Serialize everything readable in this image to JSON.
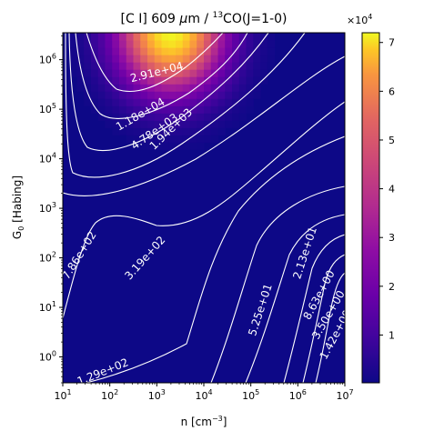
{
  "chart_data": {
    "type": "heatmap",
    "title": "[C I] 609 μm / ¹³CO(J=1-0)",
    "title_parts": {
      "pre": "[C I] 609 ",
      "mu": "μ",
      "mid": "m / ",
      "sup": "13",
      "post": "CO(J=1-0)"
    },
    "xlabel": "n [cm⁻³]",
    "xlabel_parts": {
      "pre": "n [cm",
      "sup": "−3",
      "post": "]"
    },
    "ylabel": "G₀ [Habing]",
    "ylabel_parts": {
      "pre": "G",
      "sub": "0",
      "post": " [Habing]"
    },
    "x_scale": "log",
    "y_scale": "log",
    "xlim": [
      10,
      10000000
    ],
    "ylim": [
      0.3,
      3500000
    ],
    "x_ticks": [
      {
        "value": 10,
        "base": "10",
        "exp": "1"
      },
      {
        "value": 100,
        "base": "10",
        "exp": "2"
      },
      {
        "value": 1000,
        "base": "10",
        "exp": "3"
      },
      {
        "value": 10000,
        "base": "10",
        "exp": "4"
      },
      {
        "value": 100000,
        "base": "10",
        "exp": "5"
      },
      {
        "value": 1000000,
        "base": "10",
        "exp": "6"
      },
      {
        "value": 10000000,
        "base": "10",
        "exp": "7"
      }
    ],
    "y_ticks": [
      {
        "value": 1,
        "base": "10",
        "exp": "0"
      },
      {
        "value": 10,
        "base": "10",
        "exp": "1"
      },
      {
        "value": 100,
        "base": "10",
        "exp": "2"
      },
      {
        "value": 1000,
        "base": "10",
        "exp": "3"
      },
      {
        "value": 10000,
        "base": "10",
        "exp": "4"
      },
      {
        "value": 100000,
        "base": "10",
        "exp": "5"
      },
      {
        "value": 1000000,
        "base": "10",
        "exp": "6"
      }
    ],
    "colormap": "plasma",
    "colorbar": {
      "range": [
        200,
        72000
      ],
      "multiplier_base": "×10",
      "multiplier_exp": "4",
      "ticks": [
        {
          "value": 10000,
          "label": "1"
        },
        {
          "value": 20000,
          "label": "2"
        },
        {
          "value": 30000,
          "label": "3"
        },
        {
          "value": 40000,
          "label": "4"
        },
        {
          "value": 50000,
          "label": "5"
        },
        {
          "value": 60000,
          "label": "6"
        },
        {
          "value": 70000,
          "label": "7"
        }
      ]
    },
    "peak": {
      "log_n": 3.3,
      "log_g0": 6.6,
      "value": 72000
    },
    "contour_labels": [
      {
        "text": "2.91e+04",
        "log_n": 3.0,
        "log_g0": 5.75,
        "angle": -14
      },
      {
        "text": "1.18e+04",
        "log_n": 2.65,
        "log_g0": 4.9,
        "angle": -30
      },
      {
        "text": "4.78e+03",
        "log_n": 2.95,
        "log_g0": 4.55,
        "angle": -35
      },
      {
        "text": "1.94e+03",
        "log_n": 3.3,
        "log_g0": 4.6,
        "angle": -44
      },
      {
        "text": "7.86e+02",
        "log_n": 1.35,
        "log_g0": 2.05,
        "angle": -58
      },
      {
        "text": "3.19e+02",
        "log_n": 2.75,
        "log_g0": 2.0,
        "angle": -48
      },
      {
        "text": "2.13e+01",
        "log_n": 6.15,
        "log_g0": 2.1,
        "angle": -72
      },
      {
        "text": "5.25e+01",
        "log_n": 5.2,
        "log_g0": 0.95,
        "angle": -72
      },
      {
        "text": "8.63e+00",
        "log_n": 6.45,
        "log_g0": 1.25,
        "angle": -62
      },
      {
        "text": "3.50e+00",
        "log_n": 6.65,
        "log_g0": 0.85,
        "angle": -60
      },
      {
        "text": "1.42e+00",
        "log_n": 6.8,
        "log_g0": 0.45,
        "angle": -62
      },
      {
        "text": "1.29e+02",
        "log_n": 1.85,
        "log_g0": -0.3,
        "angle": -22
      }
    ]
  }
}
